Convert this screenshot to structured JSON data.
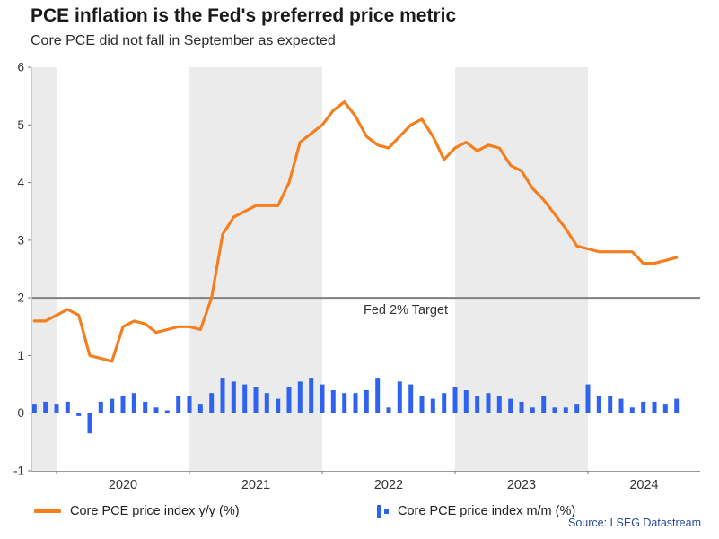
{
  "header": {
    "title": "PCE inflation is the Fed's preferred price metric",
    "subtitle": "Core PCE did not fall in September as expected"
  },
  "source": "Source: LSEG Datastream",
  "legend": [
    {
      "label": "Core PCE price index y/y (%)",
      "type": "line"
    },
    {
      "label": "Core PCE price index m/m (%)",
      "type": "bar"
    }
  ],
  "colors": {
    "line_orange": "#f57e1f",
    "bar_blue": "#2f63ef",
    "band_gray": "#ebebeb",
    "target_gray": "#808080",
    "source_blue": "#274b9c",
    "axis_text": "#333333"
  },
  "chart_data": {
    "type": "combo",
    "title": "PCE inflation is the Fed's preferred price metric",
    "subtitle": "Core PCE did not fall in September as expected",
    "x": [
      "2019-11",
      "2019-12",
      "2020-01",
      "2020-02",
      "2020-03",
      "2020-04",
      "2020-05",
      "2020-06",
      "2020-07",
      "2020-08",
      "2020-09",
      "2020-10",
      "2020-11",
      "2020-12",
      "2021-01",
      "2021-02",
      "2021-03",
      "2021-04",
      "2021-05",
      "2021-06",
      "2021-07",
      "2021-08",
      "2021-09",
      "2021-10",
      "2021-11",
      "2021-12",
      "2022-01",
      "2022-02",
      "2022-03",
      "2022-04",
      "2022-05",
      "2022-06",
      "2022-07",
      "2022-08",
      "2022-09",
      "2022-10",
      "2022-11",
      "2022-12",
      "2023-01",
      "2023-02",
      "2023-03",
      "2023-04",
      "2023-05",
      "2023-06",
      "2023-07",
      "2023-08",
      "2023-09",
      "2023-10",
      "2023-11",
      "2023-12",
      "2024-01",
      "2024-02",
      "2024-03",
      "2024-04",
      "2024-05",
      "2024-06",
      "2024-07",
      "2024-08",
      "2024-09"
    ],
    "series": [
      {
        "name": "Core PCE price index y/y (%)",
        "kind": "line",
        "color": "#f57e1f",
        "values": [
          1.6,
          1.6,
          1.7,
          1.8,
          1.7,
          1.0,
          0.95,
          0.9,
          1.5,
          1.6,
          1.55,
          1.4,
          1.45,
          1.5,
          1.5,
          1.45,
          2.0,
          3.1,
          3.4,
          3.5,
          3.6,
          3.6,
          3.6,
          4.0,
          4.7,
          4.85,
          5.0,
          5.25,
          5.4,
          5.15,
          4.8,
          4.65,
          4.6,
          4.8,
          5.0,
          5.1,
          4.8,
          4.4,
          4.6,
          4.7,
          4.55,
          4.65,
          4.6,
          4.3,
          4.2,
          3.9,
          3.7,
          3.45,
          3.2,
          2.9,
          2.85,
          2.8,
          2.8,
          2.8,
          2.8,
          2.6,
          2.6,
          2.65,
          2.7
        ]
      },
      {
        "name": "Core PCE price index m/m (%)",
        "kind": "bar",
        "color": "#2f63ef",
        "values": [
          0.15,
          0.2,
          0.15,
          0.2,
          -0.05,
          -0.35,
          0.2,
          0.25,
          0.3,
          0.35,
          0.2,
          0.1,
          0.05,
          0.3,
          0.3,
          0.15,
          0.35,
          0.6,
          0.55,
          0.5,
          0.45,
          0.35,
          0.25,
          0.45,
          0.55,
          0.6,
          0.5,
          0.4,
          0.35,
          0.35,
          0.4,
          0.6,
          0.1,
          0.55,
          0.5,
          0.3,
          0.25,
          0.35,
          0.45,
          0.4,
          0.3,
          0.35,
          0.3,
          0.25,
          0.2,
          0.1,
          0.3,
          0.1,
          0.1,
          0.15,
          0.5,
          0.3,
          0.3,
          0.25,
          0.1,
          0.2,
          0.2,
          0.15,
          0.25
        ]
      }
    ],
    "ylim": [
      -1,
      6
    ],
    "y_ticks": [
      -1,
      0,
      1,
      2,
      3,
      4,
      5,
      6
    ],
    "x_ticks": [
      "2020",
      "2021",
      "2022",
      "2023",
      "2024"
    ],
    "shaded_years": [
      "2019",
      "2021",
      "2023"
    ],
    "band_color": "#ebebeb",
    "target": {
      "value": 2,
      "label": "Fed 2% Target",
      "color": "#808080"
    },
    "grid": false,
    "legend_position": "bottom"
  }
}
